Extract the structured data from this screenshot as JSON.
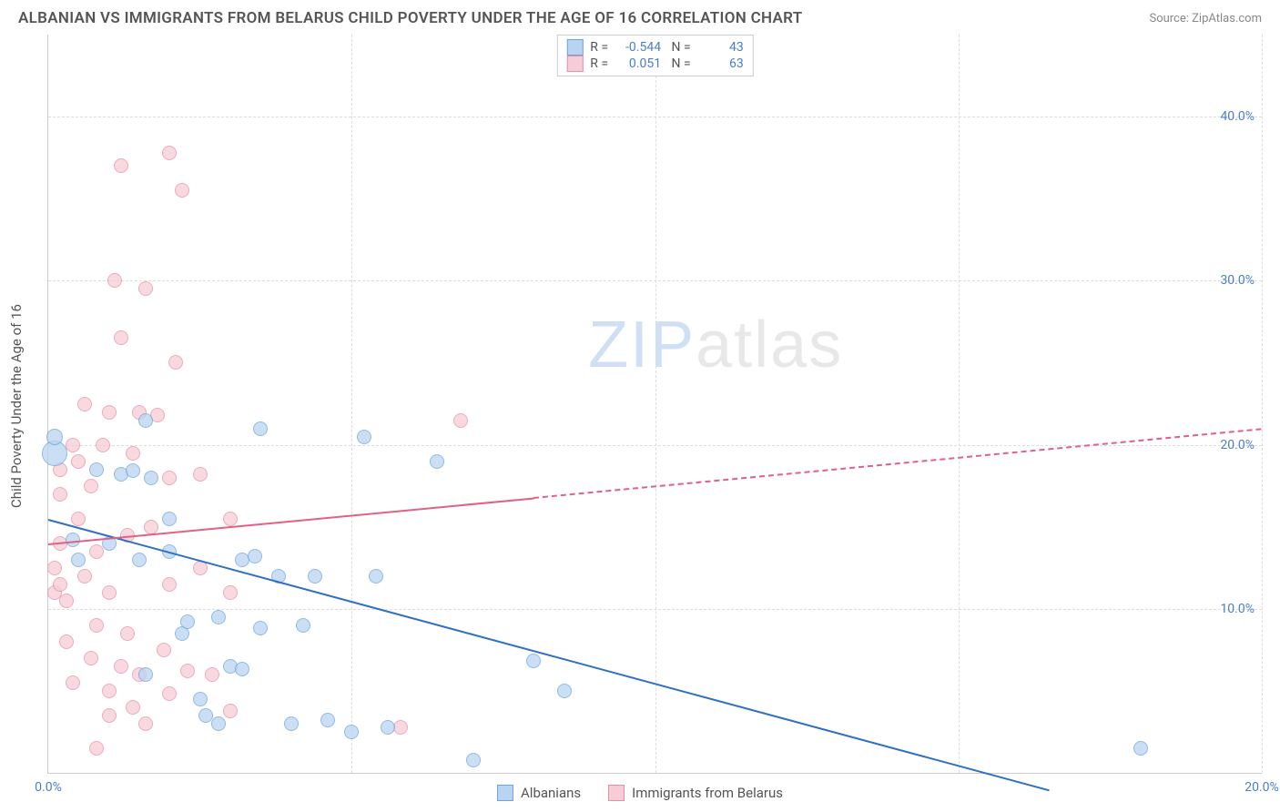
{
  "title": "ALBANIAN VS IMMIGRANTS FROM BELARUS CHILD POVERTY UNDER THE AGE OF 16 CORRELATION CHART",
  "source": "Source: ZipAtlas.com",
  "y_axis_label": "Child Poverty Under the Age of 16",
  "watermark": {
    "part1": "ZIP",
    "part2": "atlas"
  },
  "chart": {
    "type": "scatter",
    "xlim": [
      0,
      20
    ],
    "ylim": [
      0,
      45
    ],
    "y_ticks": [
      10,
      20,
      30,
      40
    ],
    "y_tick_labels": [
      "10.0%",
      "20.0%",
      "30.0%",
      "40.0%"
    ],
    "x_ticks": [
      0,
      20
    ],
    "x_tick_labels": [
      "0.0%",
      "20.0%"
    ],
    "x_grid_at": [
      5,
      10,
      15,
      20
    ],
    "background_color": "#ffffff",
    "grid_color": "#dddddd",
    "axis_color": "#cccccc",
    "tick_color": "#4a7ec9"
  },
  "series": {
    "a": {
      "label": "Albanians",
      "fill": "#b9d4f1",
      "stroke": "#6fa3dd",
      "line_color": "#2f6fc5",
      "R": "-0.544",
      "N": "43",
      "trend": {
        "x1": 0,
        "y1": 15.5,
        "x2": 16.5,
        "y2": -1.0,
        "solid_until_x": 16.5
      },
      "points": [
        {
          "x": 0.1,
          "y": 19.5,
          "r": 14
        },
        {
          "x": 0.1,
          "y": 20.5,
          "r": 9
        },
        {
          "x": 0.4,
          "y": 14.2,
          "r": 8
        },
        {
          "x": 0.5,
          "y": 13.0,
          "r": 8
        },
        {
          "x": 0.8,
          "y": 18.5,
          "r": 8
        },
        {
          "x": 1.0,
          "y": 14.0,
          "r": 8
        },
        {
          "x": 1.2,
          "y": 18.2,
          "r": 8
        },
        {
          "x": 1.4,
          "y": 18.4,
          "r": 8
        },
        {
          "x": 1.5,
          "y": 13.0,
          "r": 8
        },
        {
          "x": 1.6,
          "y": 6.0,
          "r": 8
        },
        {
          "x": 1.6,
          "y": 21.5,
          "r": 8
        },
        {
          "x": 1.7,
          "y": 18.0,
          "r": 8
        },
        {
          "x": 2.0,
          "y": 13.5,
          "r": 8
        },
        {
          "x": 2.0,
          "y": 15.5,
          "r": 8
        },
        {
          "x": 2.2,
          "y": 8.5,
          "r": 8
        },
        {
          "x": 2.3,
          "y": 9.2,
          "r": 8
        },
        {
          "x": 2.5,
          "y": 4.5,
          "r": 8
        },
        {
          "x": 2.6,
          "y": 3.5,
          "r": 8
        },
        {
          "x": 2.8,
          "y": 9.5,
          "r": 8
        },
        {
          "x": 2.8,
          "y": 3.0,
          "r": 8
        },
        {
          "x": 3.0,
          "y": 6.5,
          "r": 8
        },
        {
          "x": 3.2,
          "y": 13.0,
          "r": 8
        },
        {
          "x": 3.2,
          "y": 6.3,
          "r": 8
        },
        {
          "x": 3.4,
          "y": 13.2,
          "r": 8
        },
        {
          "x": 3.5,
          "y": 8.8,
          "r": 8
        },
        {
          "x": 3.5,
          "y": 21.0,
          "r": 8
        },
        {
          "x": 3.8,
          "y": 12.0,
          "r": 8
        },
        {
          "x": 4.0,
          "y": 3.0,
          "r": 8
        },
        {
          "x": 4.2,
          "y": 9.0,
          "r": 8
        },
        {
          "x": 4.4,
          "y": 12.0,
          "r": 8
        },
        {
          "x": 4.6,
          "y": 3.2,
          "r": 8
        },
        {
          "x": 5.0,
          "y": 2.5,
          "r": 8
        },
        {
          "x": 5.2,
          "y": 20.5,
          "r": 8
        },
        {
          "x": 5.4,
          "y": 12.0,
          "r": 8
        },
        {
          "x": 5.6,
          "y": 2.8,
          "r": 8
        },
        {
          "x": 6.4,
          "y": 19.0,
          "r": 8
        },
        {
          "x": 7.0,
          "y": 0.8,
          "r": 8
        },
        {
          "x": 8.0,
          "y": 6.8,
          "r": 8
        },
        {
          "x": 8.5,
          "y": 5.0,
          "r": 8
        },
        {
          "x": 18.0,
          "y": 1.5,
          "r": 8
        }
      ]
    },
    "b": {
      "label": "Immigrants from Belarus",
      "fill": "#f6cdd6",
      "stroke": "#e98fa3",
      "line_color": "#e26184",
      "R": "0.051",
      "N": "63",
      "trend": {
        "x1": 0,
        "y1": 14.0,
        "x2": 20,
        "y2": 21.0,
        "solid_until_x": 8.0
      },
      "points": [
        {
          "x": 0.1,
          "y": 11.0,
          "r": 8
        },
        {
          "x": 0.1,
          "y": 12.5,
          "r": 8
        },
        {
          "x": 0.2,
          "y": 14.0,
          "r": 8
        },
        {
          "x": 0.2,
          "y": 17.0,
          "r": 8
        },
        {
          "x": 0.2,
          "y": 18.5,
          "r": 8
        },
        {
          "x": 0.2,
          "y": 11.5,
          "r": 8
        },
        {
          "x": 0.3,
          "y": 8.0,
          "r": 8
        },
        {
          "x": 0.3,
          "y": 10.5,
          "r": 8
        },
        {
          "x": 0.4,
          "y": 20.0,
          "r": 8
        },
        {
          "x": 0.4,
          "y": 5.5,
          "r": 8
        },
        {
          "x": 0.5,
          "y": 19.0,
          "r": 8
        },
        {
          "x": 0.5,
          "y": 15.5,
          "r": 8
        },
        {
          "x": 0.6,
          "y": 22.5,
          "r": 8
        },
        {
          "x": 0.6,
          "y": 12.0,
          "r": 8
        },
        {
          "x": 0.7,
          "y": 7.0,
          "r": 8
        },
        {
          "x": 0.7,
          "y": 17.5,
          "r": 8
        },
        {
          "x": 0.8,
          "y": 13.5,
          "r": 8
        },
        {
          "x": 0.8,
          "y": 9.0,
          "r": 8
        },
        {
          "x": 0.8,
          "y": 1.5,
          "r": 8
        },
        {
          "x": 0.9,
          "y": 20.0,
          "r": 8
        },
        {
          "x": 1.0,
          "y": 11.0,
          "r": 8
        },
        {
          "x": 1.0,
          "y": 22.0,
          "r": 8
        },
        {
          "x": 1.0,
          "y": 3.5,
          "r": 8
        },
        {
          "x": 1.0,
          "y": 5.0,
          "r": 8
        },
        {
          "x": 1.1,
          "y": 30.0,
          "r": 8
        },
        {
          "x": 1.2,
          "y": 37.0,
          "r": 8
        },
        {
          "x": 1.2,
          "y": 6.5,
          "r": 8
        },
        {
          "x": 1.2,
          "y": 26.5,
          "r": 8
        },
        {
          "x": 1.3,
          "y": 14.5,
          "r": 8
        },
        {
          "x": 1.3,
          "y": 8.5,
          "r": 8
        },
        {
          "x": 1.4,
          "y": 19.5,
          "r": 8
        },
        {
          "x": 1.4,
          "y": 4.0,
          "r": 8
        },
        {
          "x": 1.5,
          "y": 22.0,
          "r": 8
        },
        {
          "x": 1.5,
          "y": 6.0,
          "r": 8
        },
        {
          "x": 1.6,
          "y": 29.5,
          "r": 8
        },
        {
          "x": 1.6,
          "y": 3.0,
          "r": 8
        },
        {
          "x": 1.7,
          "y": 15.0,
          "r": 8
        },
        {
          "x": 1.8,
          "y": 21.8,
          "r": 8
        },
        {
          "x": 1.9,
          "y": 7.5,
          "r": 8
        },
        {
          "x": 2.0,
          "y": 37.8,
          "r": 8
        },
        {
          "x": 2.0,
          "y": 18.0,
          "r": 8
        },
        {
          "x": 2.0,
          "y": 11.5,
          "r": 8
        },
        {
          "x": 2.0,
          "y": 4.8,
          "r": 8
        },
        {
          "x": 2.1,
          "y": 25.0,
          "r": 8
        },
        {
          "x": 2.2,
          "y": 35.5,
          "r": 8
        },
        {
          "x": 2.3,
          "y": 6.2,
          "r": 8
        },
        {
          "x": 2.5,
          "y": 18.2,
          "r": 8
        },
        {
          "x": 2.5,
          "y": 12.5,
          "r": 8
        },
        {
          "x": 2.7,
          "y": 6.0,
          "r": 8
        },
        {
          "x": 3.0,
          "y": 15.5,
          "r": 8
        },
        {
          "x": 3.0,
          "y": 11.0,
          "r": 8
        },
        {
          "x": 3.0,
          "y": 3.8,
          "r": 8
        },
        {
          "x": 5.8,
          "y": 2.8,
          "r": 8
        },
        {
          "x": 6.8,
          "y": 21.5,
          "r": 8
        }
      ]
    }
  },
  "bottom_legend": [
    {
      "key": "a",
      "label": "Albanians"
    },
    {
      "key": "b",
      "label": "Immigrants from Belarus"
    }
  ]
}
